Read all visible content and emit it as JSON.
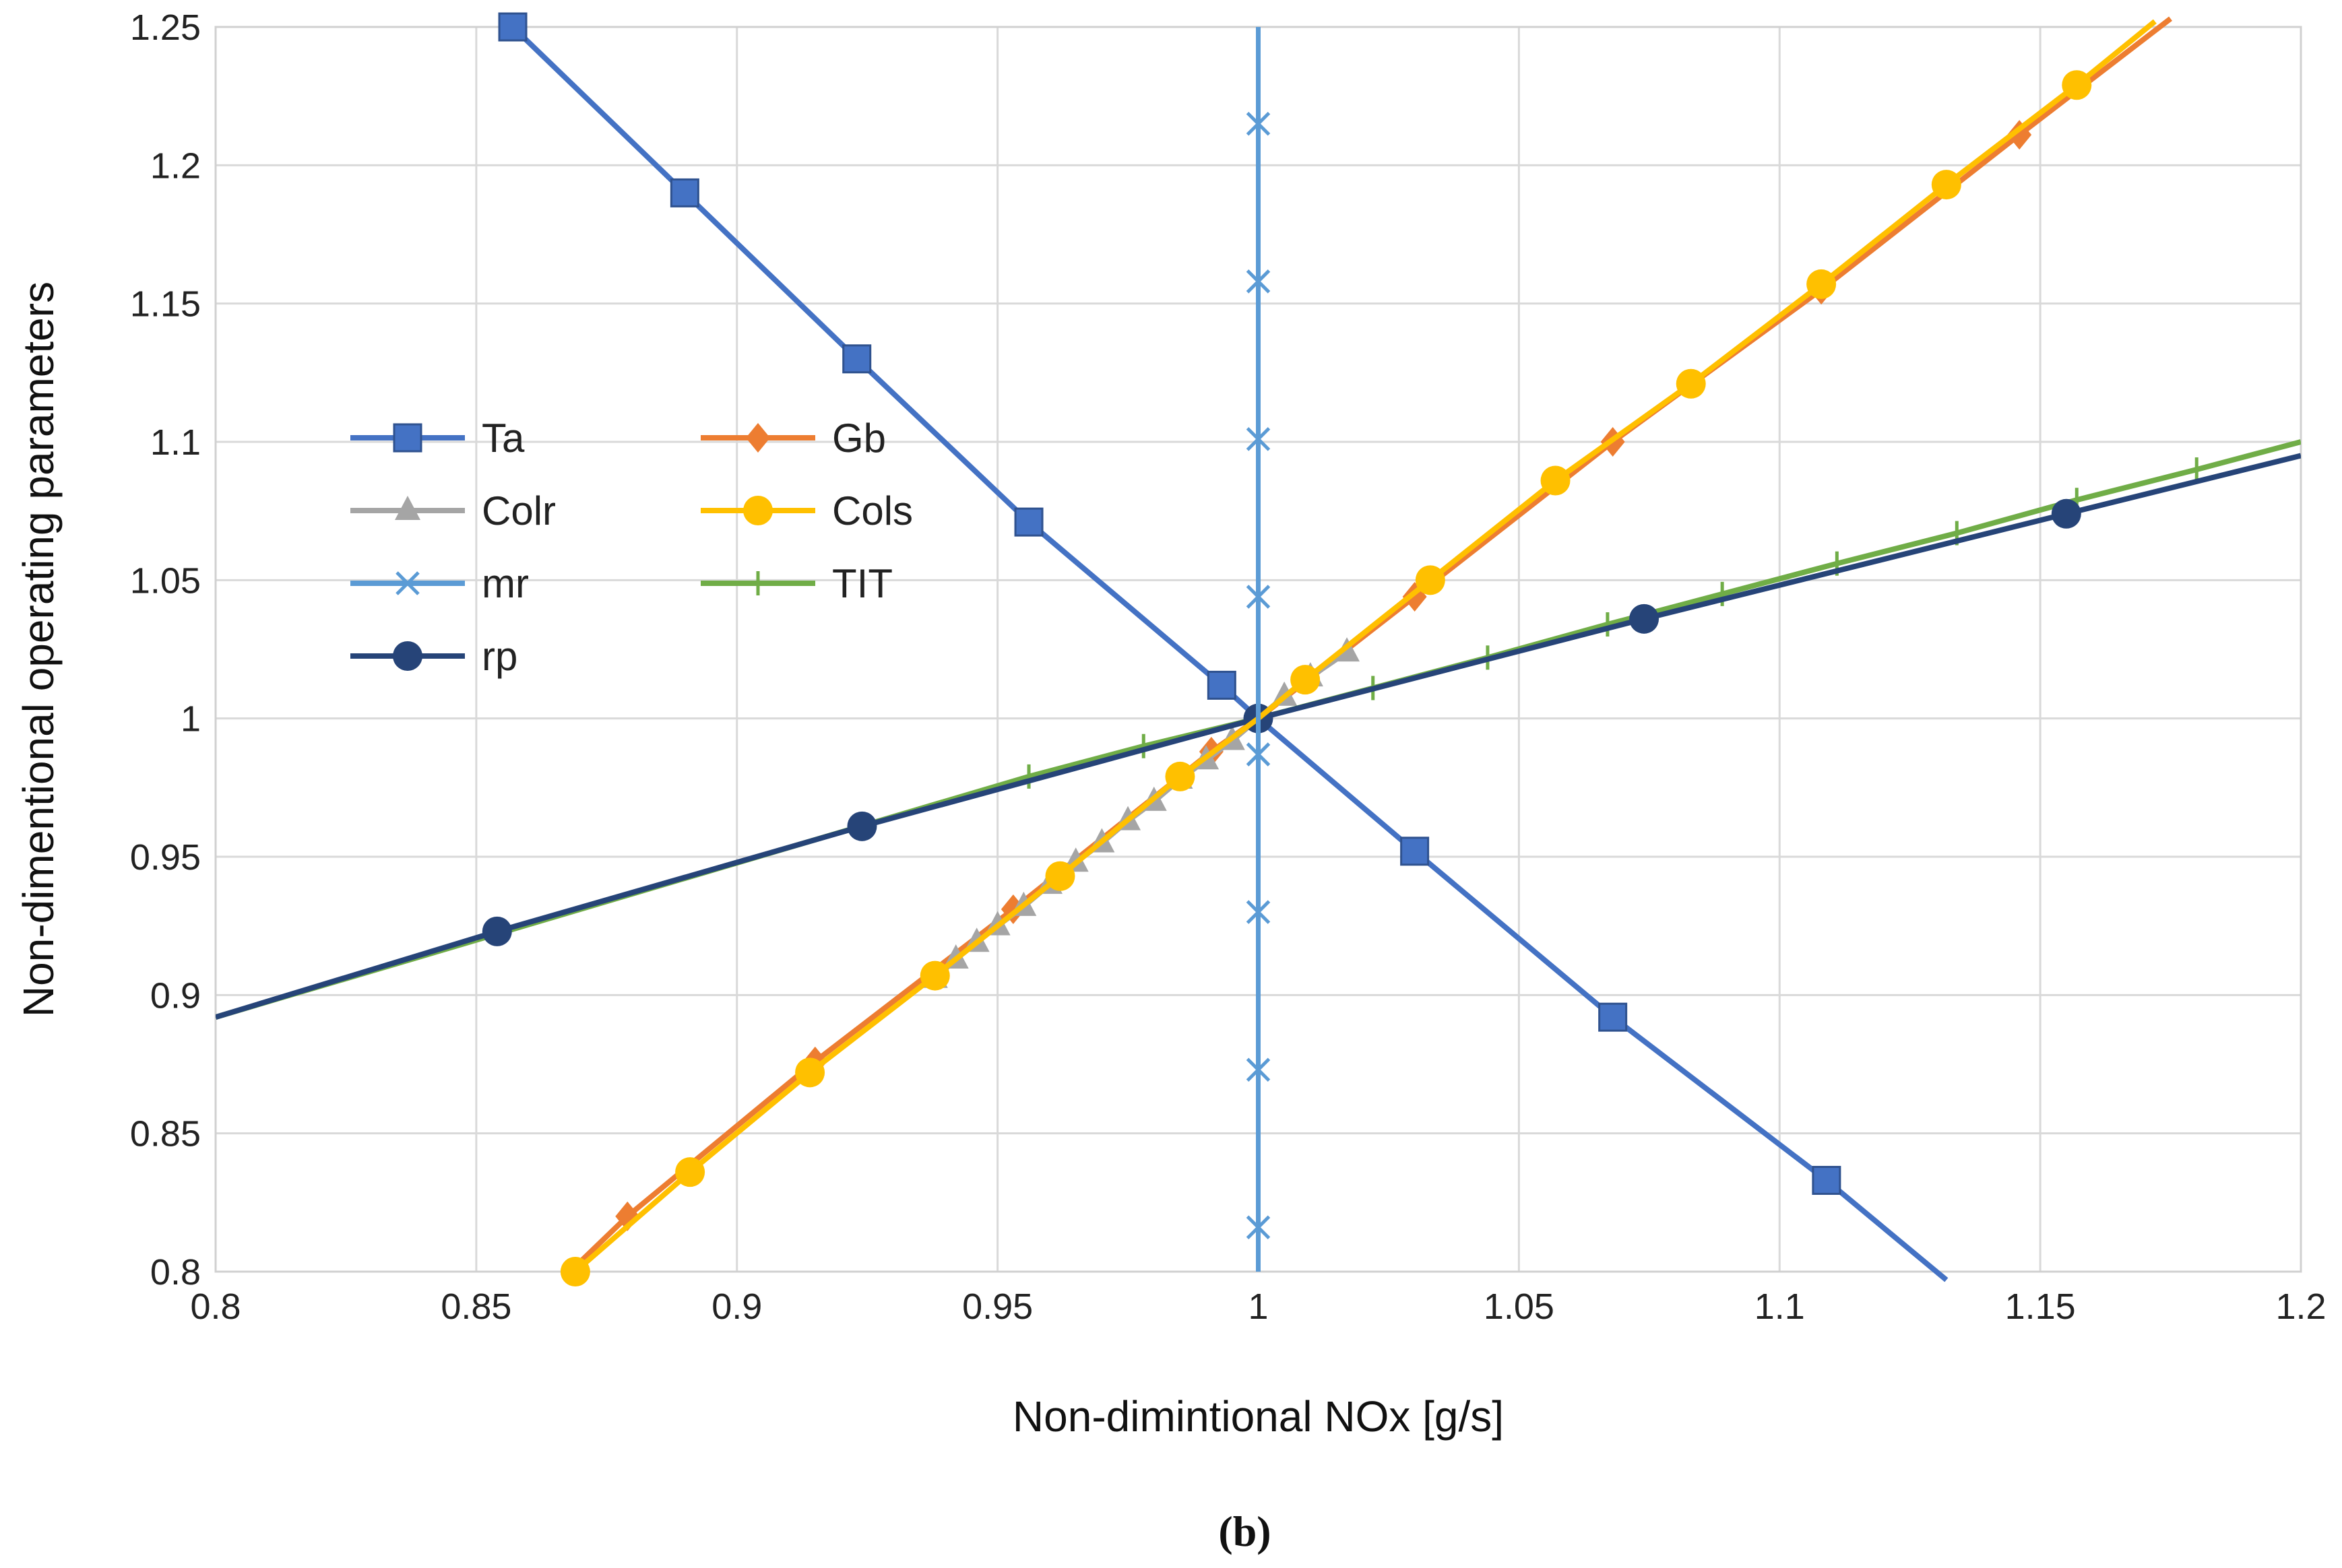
{
  "chart_data": {
    "type": "line",
    "title": "",
    "caption": "(b)",
    "xlabel": "Non-dimintional NOx [g/s]",
    "ylabel": "Non-dimentional operating parameters",
    "xlim": [
      0.8,
      1.2
    ],
    "ylim": [
      0.8,
      1.25
    ],
    "xticks": [
      0.8,
      0.85,
      0.9,
      0.95,
      1.0,
      1.05,
      1.1,
      1.15,
      1.2
    ],
    "xtick_labels": [
      "0.8",
      "0.85",
      "0.9",
      "0.95",
      "1",
      "1.05",
      "1.1",
      "1.15",
      "1.2"
    ],
    "yticks": [
      0.8,
      0.85,
      0.9,
      0.95,
      1.0,
      1.05,
      1.1,
      1.15,
      1.2,
      1.25
    ],
    "ytick_labels": [
      "0.8",
      "0.85",
      "0.9",
      "0.95",
      "1",
      "1.05",
      "1.1",
      "1.15",
      "1.2",
      "1.25"
    ],
    "grid": true,
    "legend_position": "center-left",
    "series": [
      {
        "name": "Ta",
        "color": "#4472C4",
        "marker": "square",
        "x": [
          0.857,
          0.89,
          0.923,
          0.956,
          0.993,
          1.0,
          1.03,
          1.068,
          1.109,
          1.132
        ],
        "y": [
          1.25,
          1.19,
          1.13,
          1.071,
          1.012,
          1.0,
          0.952,
          0.892,
          0.833,
          0.797
        ],
        "marker_x": [
          0.857,
          0.89,
          0.923,
          0.956,
          0.993,
          1.03,
          1.068,
          1.109
        ],
        "marker_y": [
          1.25,
          1.19,
          1.13,
          1.071,
          1.012,
          0.952,
          0.892,
          0.833
        ]
      },
      {
        "name": "Gb",
        "color": "#ED7D31",
        "marker": "diamond",
        "x": [
          0.868,
          0.879,
          0.915,
          0.953,
          0.991,
          1.0,
          1.03,
          1.068,
          1.108,
          1.146,
          1.175
        ],
        "y": [
          0.8,
          0.82,
          0.876,
          0.931,
          0.988,
          1.0,
          1.044,
          1.1,
          1.155,
          1.211,
          1.253
        ],
        "marker_x": [
          0.879,
          0.915,
          0.953,
          0.991,
          1.03,
          1.068,
          1.108,
          1.146
        ],
        "marker_y": [
          0.82,
          0.876,
          0.931,
          0.988,
          1.044,
          1.1,
          1.155,
          1.211
        ]
      },
      {
        "name": "Colr",
        "color": "#A5A5A5",
        "marker": "triangle",
        "x": [
          0.938,
          0.942,
          0.946,
          0.95,
          0.955,
          0.96,
          0.965,
          0.97,
          0.975,
          0.98,
          0.985,
          0.99,
          0.995,
          1.0,
          1.005,
          1.01,
          1.017
        ],
        "y": [
          0.906,
          0.913,
          0.919,
          0.925,
          0.932,
          0.94,
          0.948,
          0.955,
          0.963,
          0.97,
          0.978,
          0.985,
          0.992,
          1.0,
          1.008,
          1.015,
          1.024
        ],
        "marker_x": [
          0.938,
          0.942,
          0.946,
          0.95,
          0.955,
          0.96,
          0.965,
          0.97,
          0.975,
          0.98,
          0.985,
          0.99,
          0.995,
          1.005,
          1.01,
          1.017
        ],
        "marker_y": [
          0.906,
          0.913,
          0.919,
          0.925,
          0.932,
          0.94,
          0.948,
          0.955,
          0.963,
          0.97,
          0.978,
          0.985,
          0.992,
          1.008,
          1.015,
          1.024
        ]
      },
      {
        "name": "Cols",
        "color": "#FFC000",
        "marker": "circle",
        "x": [
          0.869,
          0.891,
          0.914,
          0.938,
          0.962,
          0.985,
          1.0,
          1.009,
          1.033,
          1.057,
          1.083,
          1.108,
          1.132,
          1.157,
          1.172
        ],
        "y": [
          0.8,
          0.836,
          0.872,
          0.907,
          0.943,
          0.979,
          1.0,
          1.014,
          1.05,
          1.086,
          1.121,
          1.157,
          1.193,
          1.229,
          1.252
        ],
        "marker_x": [
          0.869,
          0.891,
          0.914,
          0.938,
          0.962,
          0.985,
          1.009,
          1.033,
          1.057,
          1.083,
          1.108,
          1.132,
          1.157
        ],
        "marker_y": [
          0.8,
          0.836,
          0.872,
          0.907,
          0.943,
          0.979,
          1.014,
          1.05,
          1.086,
          1.121,
          1.157,
          1.193,
          1.229
        ]
      },
      {
        "name": "mr",
        "color": "#5B9BD5",
        "marker": "x",
        "x": [
          1.0,
          1.0
        ],
        "y": [
          0.8,
          1.25
        ],
        "marker_x": [
          1.0,
          1.0,
          1.0,
          1.0,
          1.0,
          1.0,
          1.0,
          1.0
        ],
        "marker_y": [
          0.816,
          0.873,
          0.93,
          0.987,
          1.044,
          1.101,
          1.158,
          1.215
        ]
      },
      {
        "name": "TIT",
        "color": "#70AD47",
        "marker": "dash",
        "x": [
          0.8,
          0.956,
          0.978,
          1.0,
          1.022,
          1.044,
          1.067,
          1.089,
          1.111,
          1.134,
          1.157,
          1.18,
          1.2
        ],
        "y": [
          0.892,
          0.979,
          0.99,
          1.0,
          1.011,
          1.022,
          1.034,
          1.045,
          1.056,
          1.067,
          1.079,
          1.09,
          1.1
        ],
        "marker_x": [
          0.956,
          0.978,
          1.022,
          1.044,
          1.067,
          1.089,
          1.111,
          1.134,
          1.157,
          1.18
        ],
        "marker_y": [
          0.979,
          0.99,
          1.011,
          1.022,
          1.034,
          1.045,
          1.056,
          1.067,
          1.079,
          1.09
        ]
      },
      {
        "name": "rp",
        "color": "#264478",
        "marker": "circle",
        "x": [
          0.8,
          0.854,
          0.924,
          1.0,
          1.074,
          1.155,
          1.2
        ],
        "y": [
          0.892,
          0.923,
          0.961,
          1.0,
          1.036,
          1.074,
          1.095
        ],
        "marker_x": [
          0.854,
          0.924,
          1.0,
          1.074,
          1.155
        ],
        "marker_y": [
          0.923,
          0.961,
          1.0,
          1.036,
          1.074
        ]
      }
    ]
  }
}
